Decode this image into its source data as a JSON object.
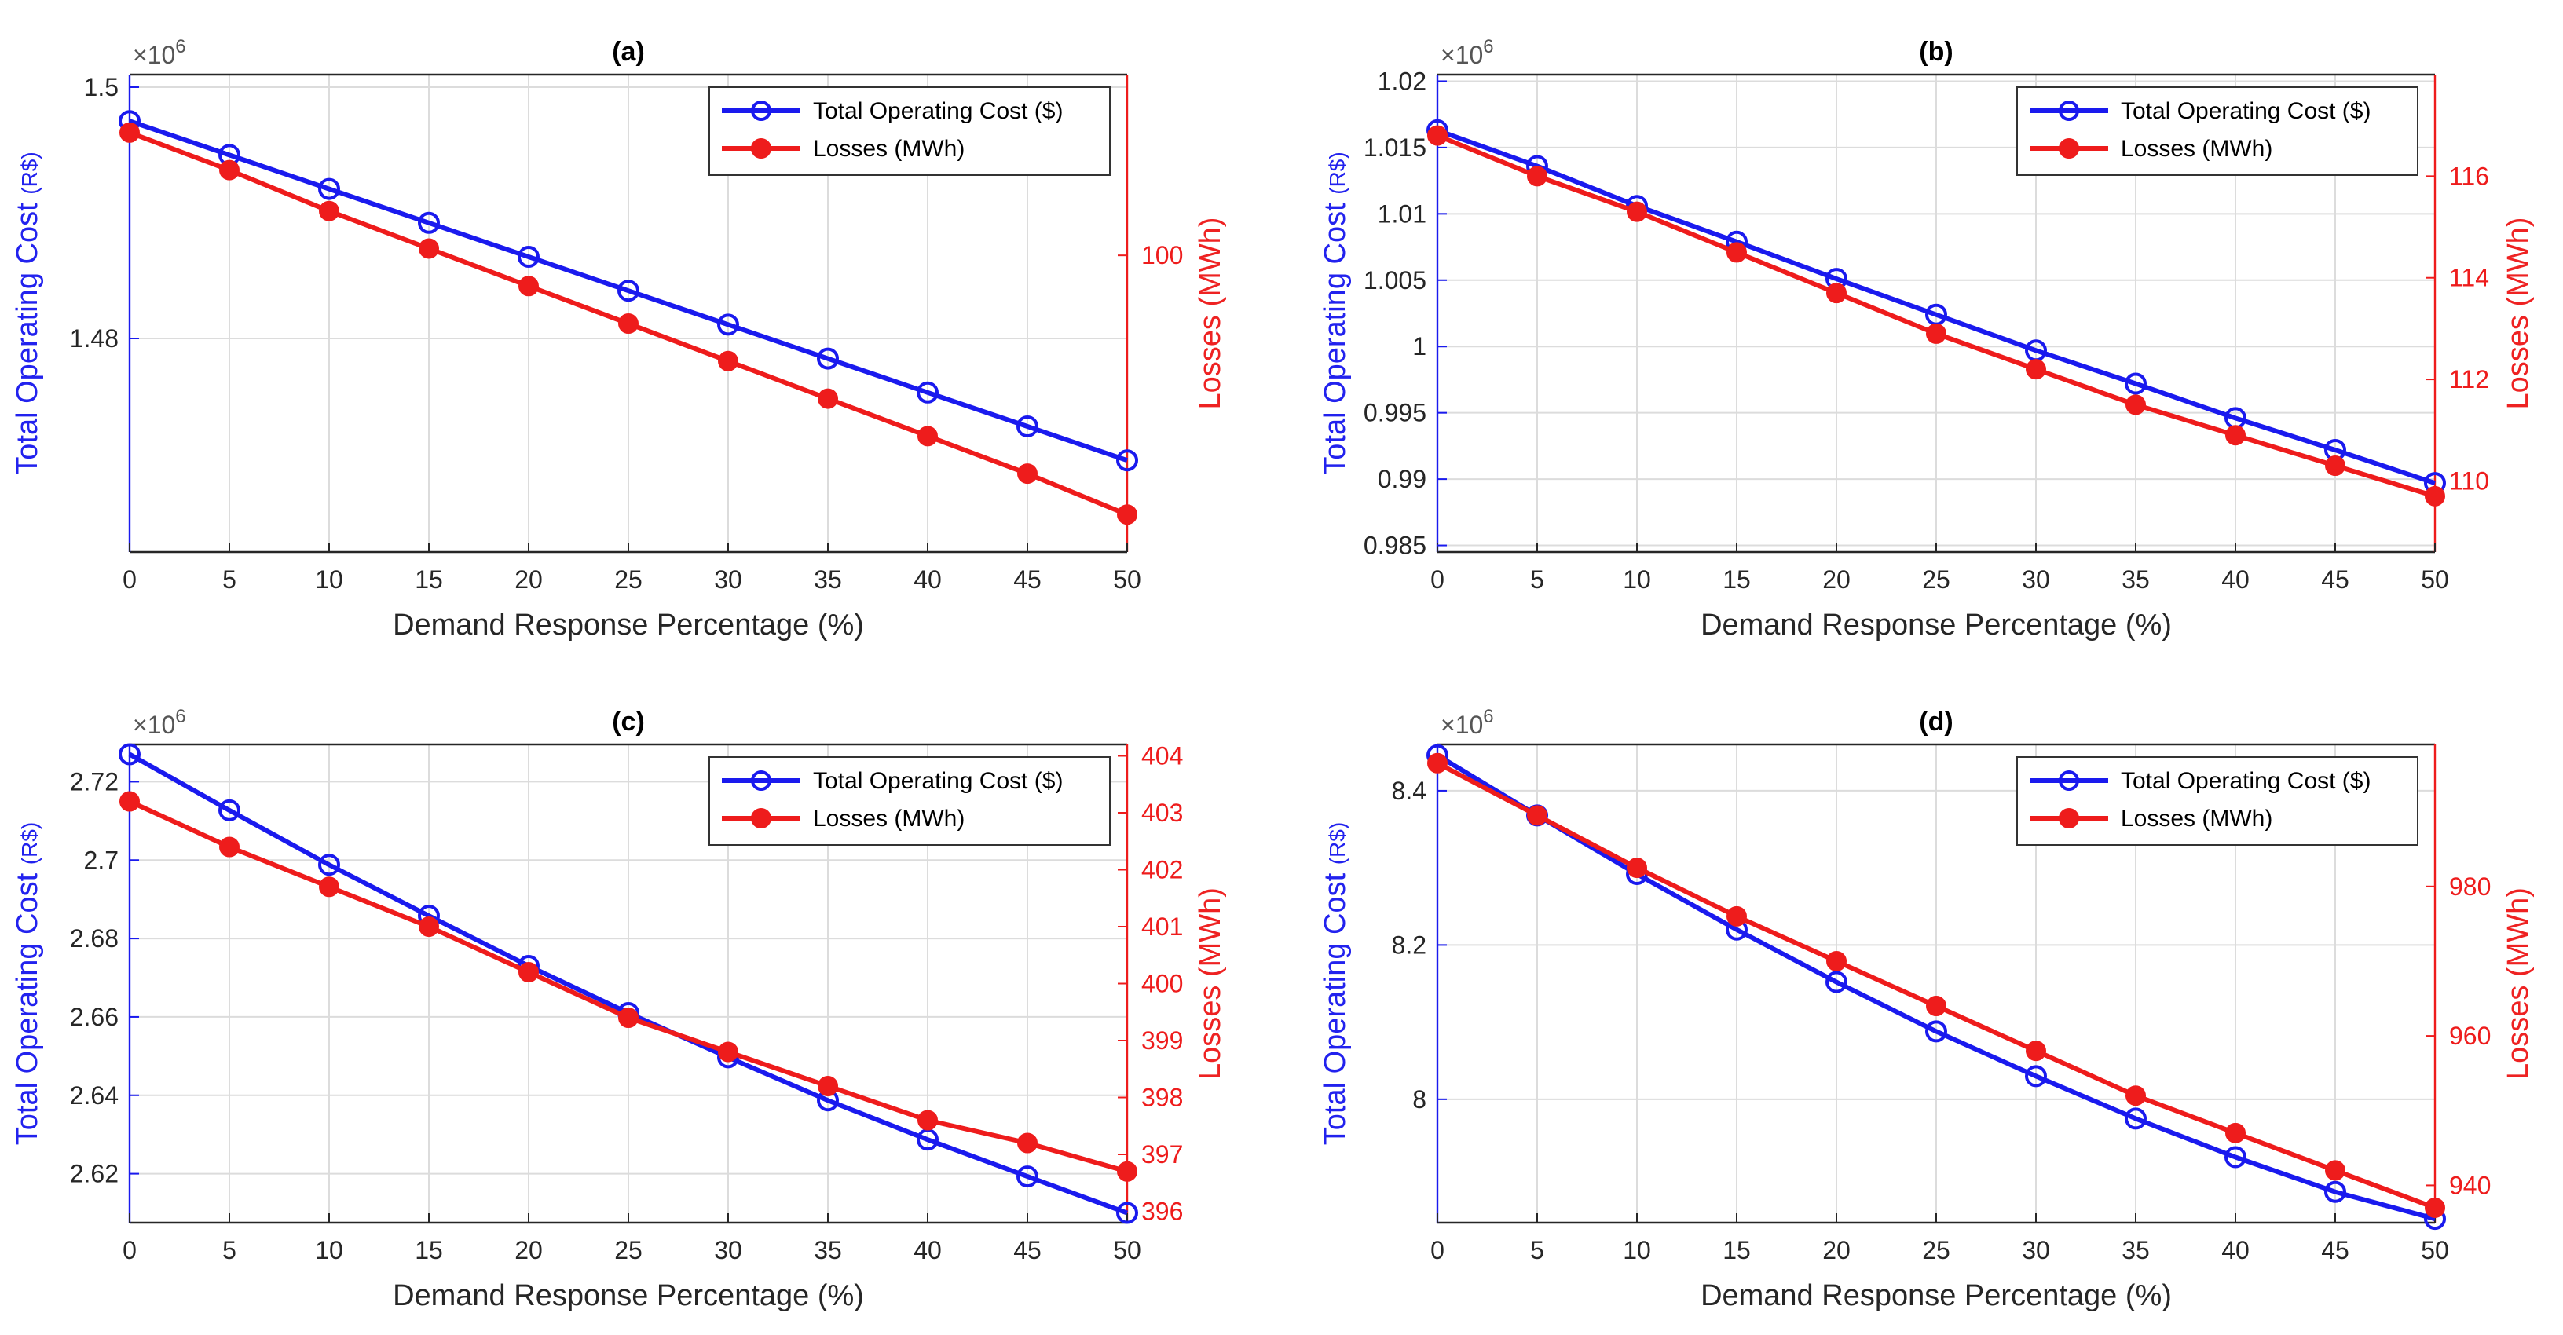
{
  "figure": {
    "colors": {
      "cost": "#1a1aee",
      "losses": "#ee1c1c",
      "axis": "#262626",
      "grid": "#dcdcdc"
    }
  },
  "chart_data": [
    {
      "type": "line",
      "panel": "(a)",
      "title": "(a)",
      "xlabel": "Demand Response Percentage (%)",
      "ylabel_left": "Total Operating Cost",
      "ylabel_left_unit": "(R$)",
      "ylabel_right": "Losses (MWh)",
      "exponent_label": "×10",
      "exponent_power": "6",
      "x": [
        0,
        5,
        10,
        15,
        20,
        25,
        30,
        35,
        40,
        45,
        50
      ],
      "xlim": [
        0,
        50
      ],
      "xticks": [
        0,
        5,
        10,
        15,
        20,
        25,
        30,
        35,
        40,
        45,
        50
      ],
      "ylim_left": [
        1.463,
        1.501
      ],
      "yticks_left": [
        1.48,
        1.5
      ],
      "ytick_labels_left": [
        "1.48",
        "1.5"
      ],
      "ylim_right": [
        91.3,
        105.3
      ],
      "yticks_right": [
        100
      ],
      "ytick_labels_right": [
        "100"
      ],
      "legend_position": "top-right",
      "series": [
        {
          "name": "Total Operating Cost ($)",
          "axis": "left",
          "marker": "circle-open",
          "values": [
            1.4973,
            1.4946,
            1.4919,
            1.4892,
            1.4865,
            1.4838,
            1.4811,
            1.4784,
            1.4757,
            1.473,
            1.4703
          ]
        },
        {
          "name": "Losses (MWh)",
          "axis": "right",
          "marker": "circle-filled",
          "values": [
            103.6,
            102.5,
            101.3,
            100.2,
            99.1,
            98.0,
            96.9,
            95.8,
            94.7,
            93.6,
            92.4
          ]
        }
      ]
    },
    {
      "type": "line",
      "panel": "(b)",
      "title": "(b)",
      "xlabel": "Demand Response Percentage (%)",
      "ylabel_left": "Total Operating Cost",
      "ylabel_left_unit": "(R$)",
      "ylabel_right": "Losses (MWh)",
      "exponent_label": "×10",
      "exponent_power": "6",
      "x": [
        0,
        5,
        10,
        15,
        20,
        25,
        30,
        35,
        40,
        45,
        50
      ],
      "xlim": [
        0,
        50
      ],
      "xticks": [
        0,
        5,
        10,
        15,
        20,
        25,
        30,
        35,
        40,
        45,
        50
      ],
      "ylim_left": [
        0.9845,
        1.0205
      ],
      "yticks_left": [
        0.985,
        0.99,
        0.995,
        1.0,
        1.005,
        1.01,
        1.015,
        1.02
      ],
      "ytick_labels_left": [
        "0.985",
        "0.99",
        "0.995",
        "1",
        "1.005",
        "1.01",
        "1.015",
        "1.02"
      ],
      "ylim_right": [
        108.6,
        118.0
      ],
      "yticks_right": [
        110,
        112,
        114,
        116
      ],
      "ytick_labels_right": [
        "110",
        "112",
        "114",
        "116"
      ],
      "legend_position": "top-right",
      "series": [
        {
          "name": "Total Operating Cost ($)",
          "axis": "left",
          "marker": "circle-open",
          "values": [
            1.0163,
            1.0136,
            1.0106,
            1.0079,
            1.0051,
            1.0024,
            0.9997,
            0.9972,
            0.9946,
            0.9922,
            0.9897
          ]
        },
        {
          "name": "Losses (MWh)",
          "axis": "right",
          "marker": "circle-filled",
          "values": [
            116.8,
            116.0,
            115.3,
            114.5,
            113.7,
            112.9,
            112.2,
            111.5,
            110.9,
            110.3,
            109.7
          ]
        }
      ]
    },
    {
      "type": "line",
      "panel": "(c)",
      "title": "(c)",
      "xlabel": "Demand Response Percentage (%)",
      "ylabel_left": "Total Operating Cost",
      "ylabel_left_unit": "(R$)",
      "ylabel_right": "Losses (MWh)",
      "exponent_label": "×10",
      "exponent_power": "6",
      "x": [
        0,
        5,
        10,
        15,
        20,
        25,
        30,
        35,
        40,
        45,
        50
      ],
      "xlim": [
        0,
        50
      ],
      "xticks": [
        0,
        5,
        10,
        15,
        20,
        25,
        30,
        35,
        40,
        45,
        50
      ],
      "ylim_left": [
        2.6075,
        2.7295
      ],
      "yticks_left": [
        2.62,
        2.64,
        2.66,
        2.68,
        2.7,
        2.72
      ],
      "ytick_labels_left": [
        "2.62",
        "2.64",
        "2.66",
        "2.68",
        "2.7",
        "2.72"
      ],
      "ylim_right": [
        395.8,
        404.2
      ],
      "yticks_right": [
        396,
        397,
        398,
        399,
        400,
        401,
        402,
        403,
        404
      ],
      "ytick_labels_right": [
        "396",
        "397",
        "398",
        "399",
        "400",
        "401",
        "402",
        "403",
        "404"
      ],
      "legend_position": "top-right",
      "series": [
        {
          "name": "Total Operating Cost ($)",
          "axis": "left",
          "marker": "circle-open",
          "values": [
            2.727,
            2.7127,
            2.6988,
            2.6858,
            2.673,
            2.661,
            2.6497,
            2.6387,
            2.6287,
            2.6193,
            2.61
          ]
        },
        {
          "name": "Losses (MWh)",
          "axis": "right",
          "marker": "circle-filled",
          "values": [
            403.2,
            402.4,
            401.7,
            401.0,
            400.2,
            399.4,
            398.8,
            398.2,
            397.6,
            397.2,
            396.7
          ]
        }
      ]
    },
    {
      "type": "line",
      "panel": "(d)",
      "title": "(d)",
      "xlabel": "Demand Response Percentage (%)",
      "ylabel_left": "Total Operating Cost",
      "ylabel_left_unit": "(R$)",
      "ylabel_right": "Losses (MWh)",
      "exponent_label": "×10",
      "exponent_power": "6",
      "x": [
        0,
        5,
        10,
        15,
        20,
        25,
        30,
        35,
        40,
        45,
        50
      ],
      "xlim": [
        0,
        50
      ],
      "xticks": [
        0,
        5,
        10,
        15,
        20,
        25,
        30,
        35,
        40,
        45,
        50
      ],
      "ylim_left": [
        7.84,
        8.46
      ],
      "yticks_left": [
        8.0,
        8.2,
        8.4
      ],
      "ytick_labels_left": [
        "8",
        "8.2",
        "8.4"
      ],
      "ylim_right": [
        935.0,
        999.0
      ],
      "yticks_right": [
        940,
        960,
        980
      ],
      "ytick_labels_right": [
        "940",
        "960",
        "980"
      ],
      "legend_position": "top-right",
      "series": [
        {
          "name": "Total Operating Cost ($)",
          "axis": "left",
          "marker": "circle-open",
          "values": [
            8.446,
            8.368,
            8.292,
            8.22,
            8.152,
            8.088,
            8.03,
            7.975,
            7.925,
            7.88,
            7.845
          ]
        },
        {
          "name": "Losses (MWh)",
          "axis": "right",
          "marker": "circle-filled",
          "values": [
            996.5,
            989.5,
            982.5,
            976.0,
            970.0,
            964.0,
            958.0,
            952.0,
            947.0,
            942.0,
            937.0
          ]
        }
      ]
    }
  ]
}
